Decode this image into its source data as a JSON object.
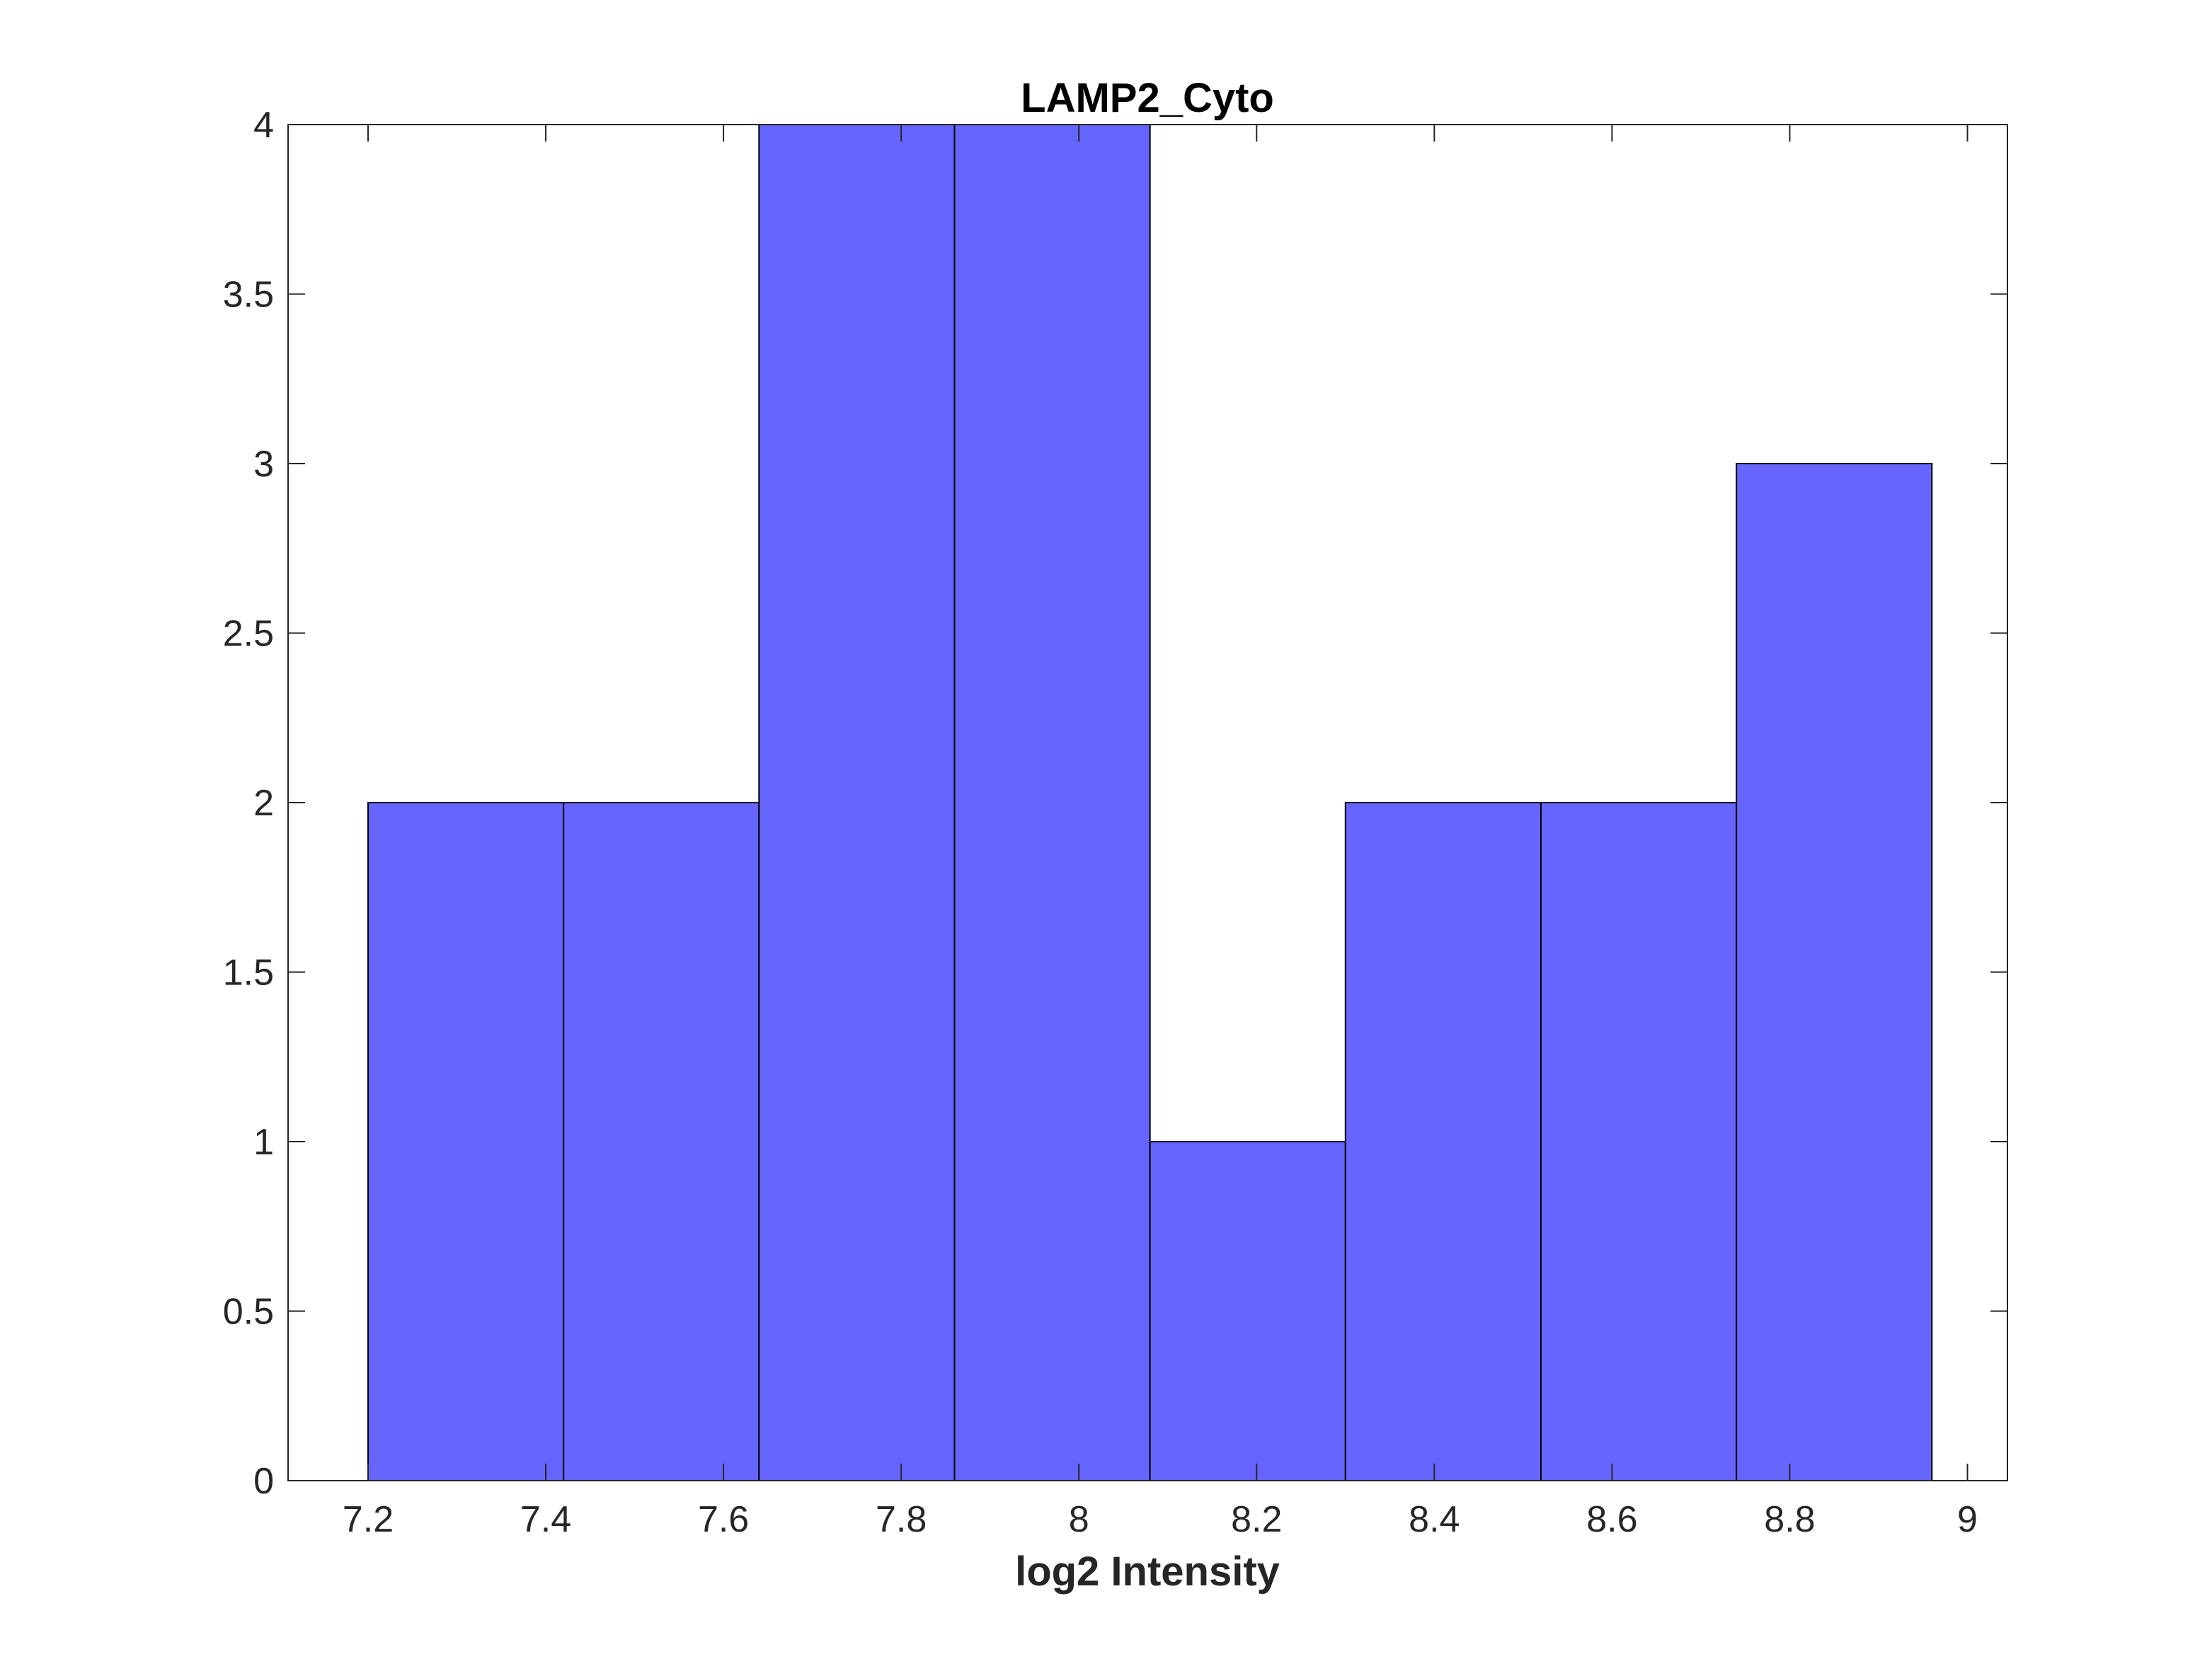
{
  "chart_data": {
    "type": "bar",
    "subtype": "histogram",
    "title": "LAMP2_Cyto",
    "xlabel": "log2 Intensity",
    "ylabel": "",
    "bin_edges": [
      7.2,
      7.42,
      7.64,
      7.86,
      8.08,
      8.3,
      8.52,
      8.74,
      8.96
    ],
    "values": [
      2,
      2,
      4,
      4,
      1,
      2,
      2,
      3
    ],
    "xlim": [
      7.11,
      9.045
    ],
    "ylim": [
      0,
      4
    ],
    "xticks": [
      7.2,
      7.4,
      7.6,
      7.8,
      8,
      8.2,
      8.4,
      8.6,
      8.8,
      9
    ],
    "xtick_labels": [
      "7.2",
      "7.4",
      "7.6",
      "7.8",
      "8",
      "8.2",
      "8.4",
      "8.6",
      "8.8",
      "9"
    ],
    "yticks": [
      0,
      0.5,
      1,
      1.5,
      2,
      2.5,
      3,
      3.5,
      4
    ],
    "ytick_labels": [
      "0",
      "0.5",
      "1",
      "1.5",
      "2",
      "2.5",
      "3",
      "3.5",
      "4"
    ],
    "grid": false,
    "legend": "none",
    "colors": {
      "bar_fill": "#6666ff",
      "bar_edge": "#000000",
      "axes": "#262626",
      "background": "#ffffff"
    }
  }
}
